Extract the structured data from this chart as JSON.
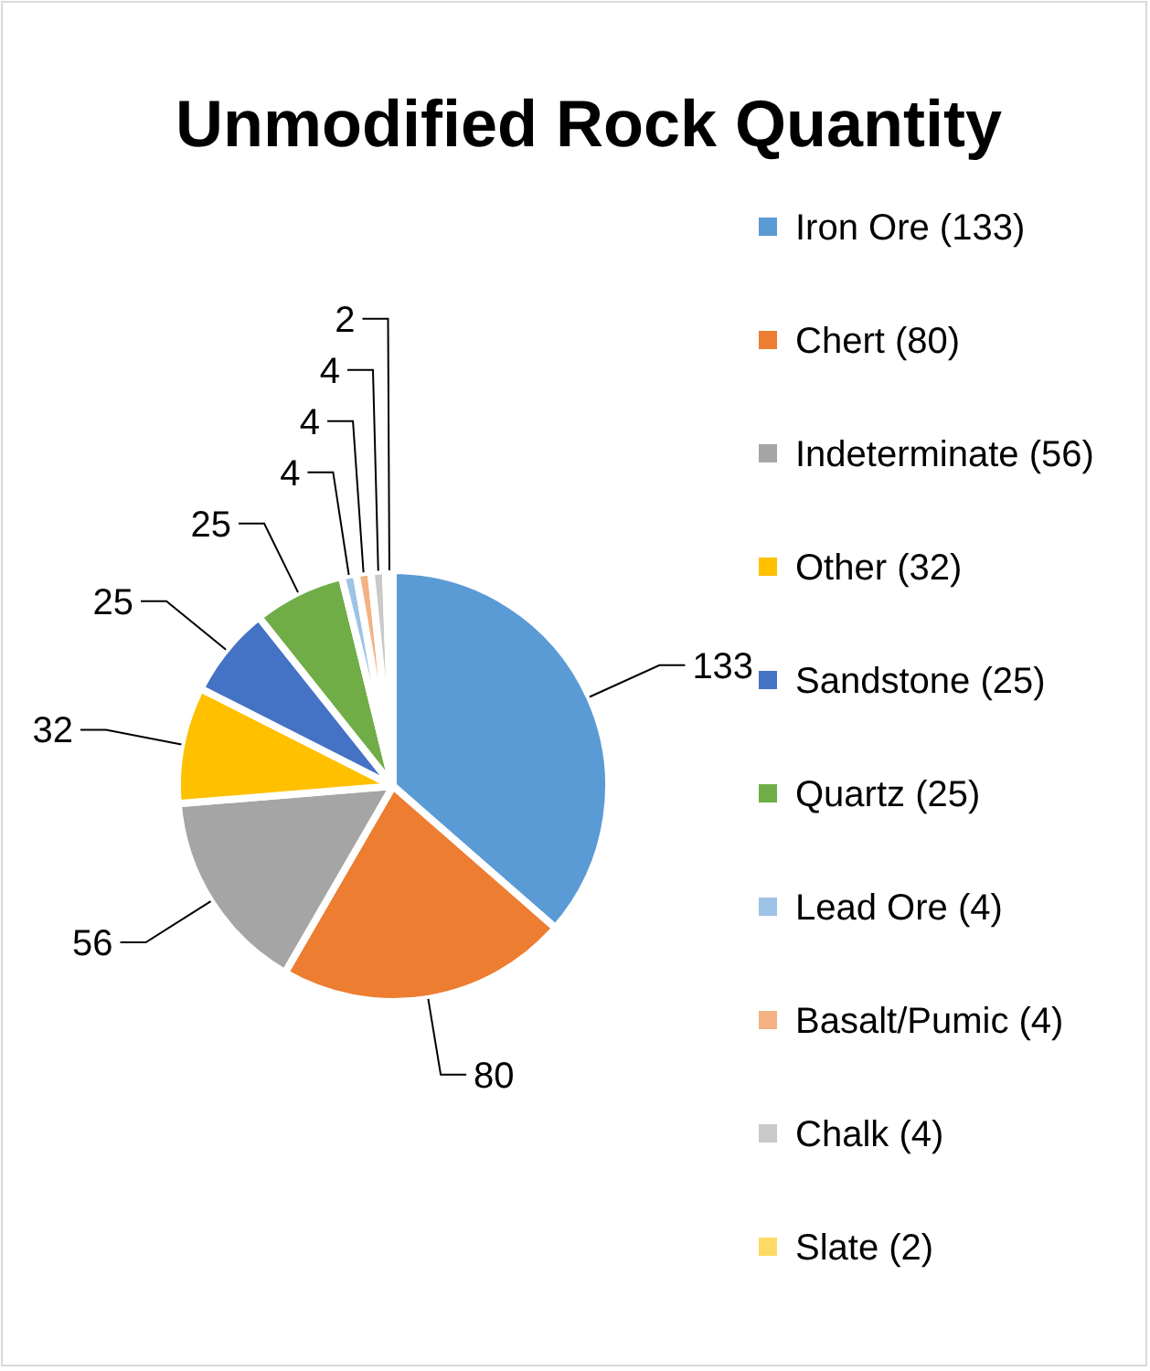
{
  "chart_data": {
    "type": "pie",
    "title": "Unmodified Rock Quantity",
    "categories": [
      "Iron Ore (133)",
      "Chert (80)",
      "Indeterminate (56)",
      "Other (32)",
      "Sandstone (25)",
      "Quartz (25)",
      "Lead Ore (4)",
      "Basalt/Pumic (4)",
      "Chalk (4)",
      "Slate (2)"
    ],
    "values": [
      133,
      80,
      56,
      32,
      25,
      25,
      4,
      4,
      4,
      2
    ],
    "colors": [
      "#5b9bd5",
      "#ed7d31",
      "#a5a5a5",
      "#ffc000",
      "#4472c4",
      "#70ad47",
      "#9dc3e6",
      "#f4b183",
      "#c9c9c9",
      "#ffd966"
    ],
    "data_labels": true,
    "legend": "right"
  }
}
